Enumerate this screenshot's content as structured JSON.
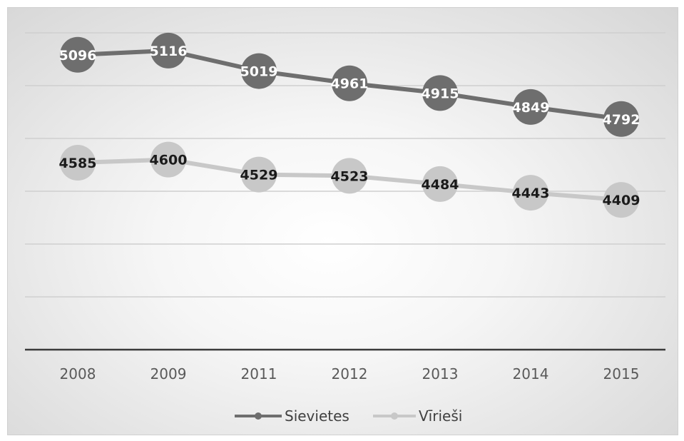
{
  "chart_data": {
    "type": "line",
    "categories": [
      "2008",
      "2009",
      "2011",
      "2012",
      "2013",
      "2014",
      "2015"
    ],
    "ylim": [
      3700,
      5200
    ],
    "grid": true,
    "legend_position": "bottom",
    "series": [
      {
        "name": "Sievietes",
        "values": [
          5096,
          5116,
          5019,
          4961,
          4915,
          4849,
          4792
        ],
        "color": "#6e6e6e",
        "label_color": "#ffffff"
      },
      {
        "name": "Vīrieši",
        "values": [
          4585,
          4600,
          4529,
          4523,
          4484,
          4443,
          4409
        ],
        "color": "#c8c8c8",
        "label_color": "#1a1a1a"
      }
    ]
  }
}
